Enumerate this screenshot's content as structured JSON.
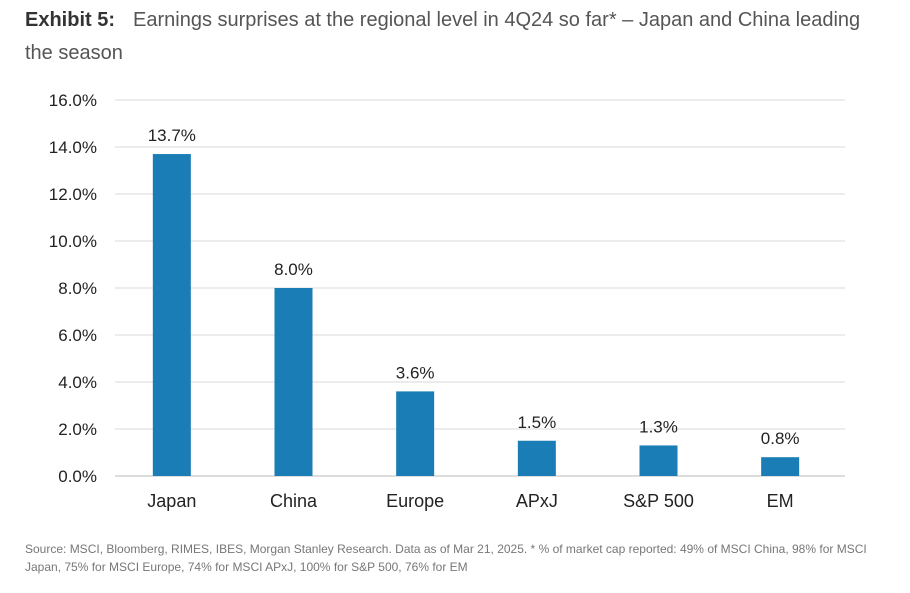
{
  "header": {
    "exhibit": "Exhibit 5:",
    "title": "Earnings surprises at the regional level in 4Q24 so far* – Japan and China leading the season"
  },
  "chart_data": {
    "type": "bar",
    "categories": [
      "Japan",
      "China",
      "Europe",
      "APxJ",
      "S&P 500",
      "EM"
    ],
    "values": [
      13.7,
      8.0,
      3.6,
      1.5,
      1.3,
      0.8
    ],
    "data_labels": [
      "13.7%",
      "8.0%",
      "3.6%",
      "1.5%",
      "1.3%",
      "0.8%"
    ],
    "ylim": [
      0,
      16
    ],
    "yticks": [
      0,
      2,
      4,
      6,
      8,
      10,
      12,
      14,
      16
    ],
    "ytick_labels": [
      "0.0%",
      "2.0%",
      "4.0%",
      "6.0%",
      "8.0%",
      "10.0%",
      "12.0%",
      "14.0%",
      "16.0%"
    ],
    "grid": true,
    "bar_color": "#1a7db5",
    "xlabel": "",
    "ylabel": ""
  },
  "footer": {
    "source": "Source: MSCI, Bloomberg, RIMES, IBES, Morgan Stanley Research. Data as of Mar 21, 2025. * % of market cap reported: 49% of MSCI China, 98% for MSCI Japan, 75% for MSCI Europe, 74% for MSCI APxJ, 100% for S&P 500, 76% for EM"
  }
}
